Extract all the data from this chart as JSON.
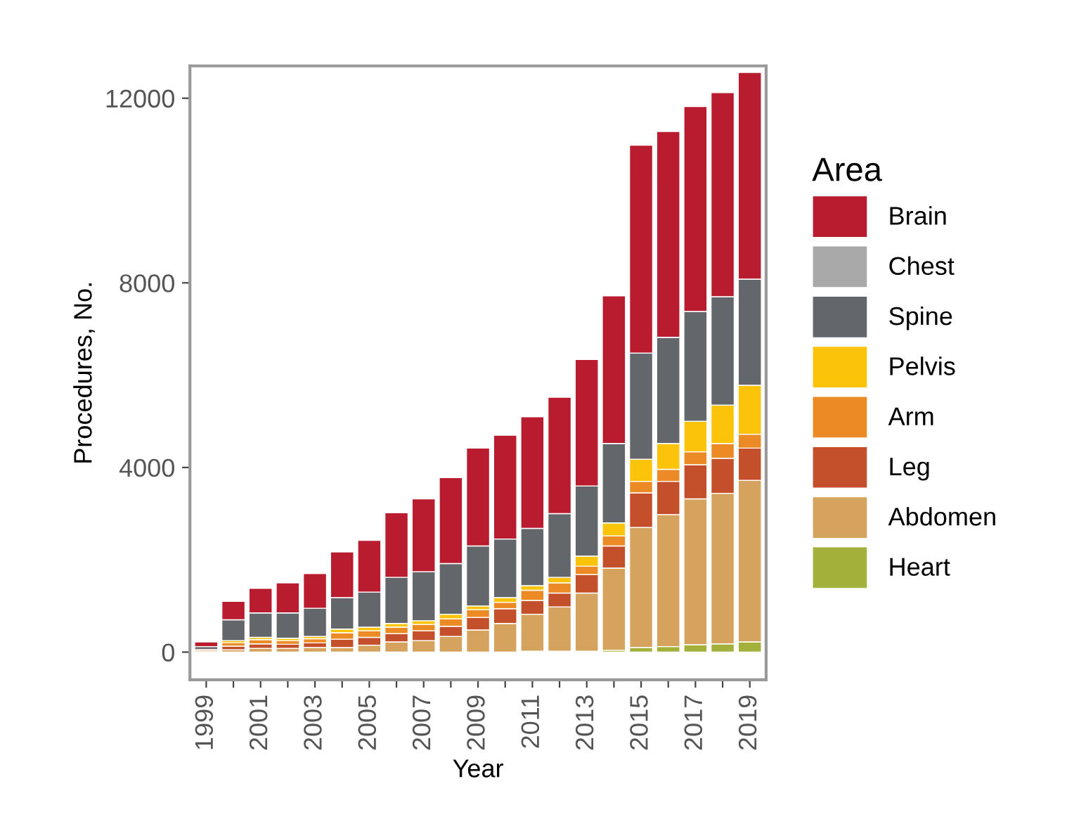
{
  "chart_data": {
    "type": "bar",
    "stacked": true,
    "xlabel": "Year",
    "ylabel": "Procedures, No.",
    "legend_title": "Area",
    "legend": "right",
    "x": [
      1999,
      2000,
      2001,
      2002,
      2003,
      2004,
      2005,
      2006,
      2007,
      2008,
      2009,
      2010,
      2011,
      2012,
      2013,
      2014,
      2015,
      2016,
      2017,
      2018,
      2019
    ],
    "xlim": [
      1998.4,
      2019.6
    ],
    "xticks": [
      1999,
      {
        "value": 2000,
        "label": null
      },
      2001,
      {
        "value": 2002,
        "label": null
      },
      2003,
      {
        "value": 2004,
        "label": null
      },
      2005,
      {
        "value": 2006,
        "label": null
      },
      2007,
      {
        "value": 2008,
        "label": null
      },
      2009,
      {
        "value": 2010,
        "label": null
      },
      2011,
      {
        "value": 2012,
        "label": null
      },
      2013,
      {
        "value": 2014,
        "label": null
      },
      2015,
      {
        "value": 2016,
        "label": null
      },
      2017,
      {
        "value": 2018,
        "label": null
      },
      2019
    ],
    "ylim": [
      -600,
      12700
    ],
    "yticks": [
      0,
      4000,
      8000,
      12000
    ],
    "grid": false,
    "series": [
      {
        "name": "Heart",
        "color": "#a3b03a",
        "values": [
          0,
          0,
          0,
          0,
          0,
          0,
          0,
          0,
          0,
          0,
          0,
          0,
          20,
          20,
          20,
          40,
          100,
          120,
          160,
          180,
          220
        ]
      },
      {
        "name": "Abdomen",
        "color": "#d6a35f",
        "values": [
          30,
          50,
          80,
          80,
          100,
          100,
          150,
          220,
          250,
          340,
          480,
          620,
          800,
          960,
          1260,
          1780,
          2600,
          2860,
          3160,
          3260,
          3500
        ]
      },
      {
        "name": "Leg",
        "color": "#c44f2b",
        "values": [
          30,
          80,
          100,
          90,
          100,
          180,
          170,
          180,
          210,
          220,
          270,
          320,
          300,
          300,
          400,
          480,
          750,
          720,
          740,
          760,
          700
        ]
      },
      {
        "name": "Arm",
        "color": "#ec8b25",
        "values": [
          0,
          70,
          90,
          80,
          90,
          140,
          140,
          140,
          140,
          160,
          170,
          140,
          220,
          220,
          180,
          220,
          250,
          260,
          280,
          320,
          300
        ]
      },
      {
        "name": "Pelvis",
        "color": "#fcc30b",
        "values": [
          0,
          50,
          50,
          50,
          50,
          80,
          80,
          80,
          80,
          100,
          80,
          100,
          100,
          120,
          220,
          280,
          480,
          560,
          660,
          830,
          1060
        ]
      },
      {
        "name": "Spine",
        "color": "#63666a",
        "values": [
          60,
          450,
          530,
          550,
          610,
          680,
          760,
          1000,
          1060,
          1100,
          1300,
          1270,
          1240,
          1380,
          1520,
          1720,
          2300,
          2300,
          2380,
          2350,
          2300
        ]
      },
      {
        "name": "Chest",
        "color": "#a9a9a9",
        "values": [
          0,
          0,
          0,
          0,
          0,
          0,
          0,
          0,
          0,
          0,
          0,
          0,
          0,
          0,
          0,
          0,
          0,
          0,
          0,
          0,
          0
        ]
      },
      {
        "name": "Brain",
        "color": "#b91c2f",
        "values": [
          100,
          400,
          530,
          650,
          750,
          990,
          1120,
          1400,
          1580,
          1860,
          2120,
          2250,
          2420,
          2520,
          2740,
          3200,
          4500,
          4460,
          4440,
          4420,
          4480
        ]
      }
    ]
  }
}
